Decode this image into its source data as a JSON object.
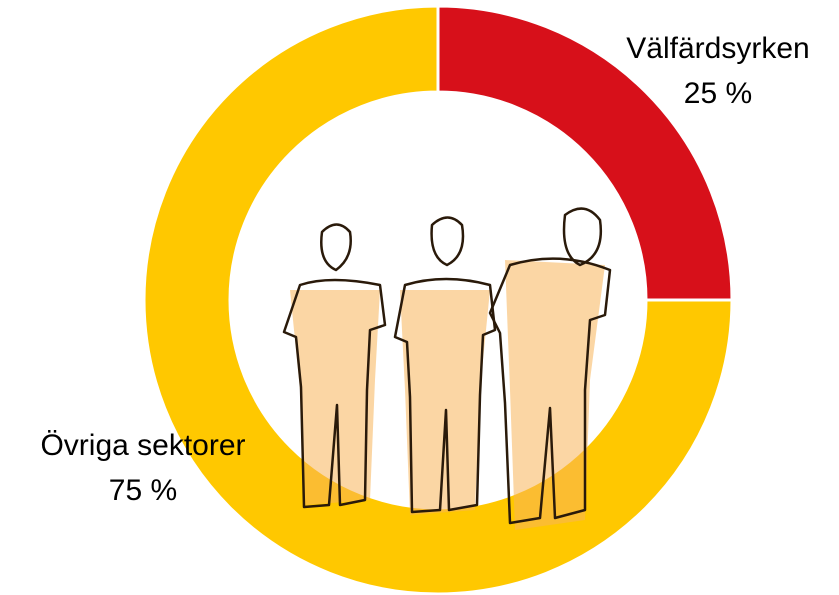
{
  "chart_data": {
    "type": "donut",
    "categories": [
      "Välfärdsyrken",
      "Övriga sektorer"
    ],
    "values": [
      25,
      75
    ],
    "value_labels": [
      "25 %",
      "75 %"
    ],
    "colors": [
      "#d7101a",
      "#ffc800"
    ]
  }
}
